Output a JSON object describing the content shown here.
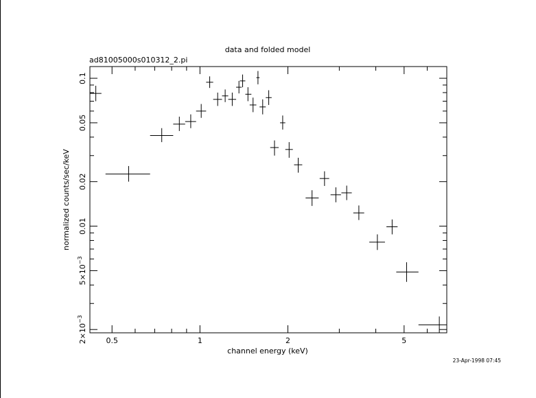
{
  "chart_data": {
    "type": "scatter",
    "title": "data and folded model",
    "subtitle": "ad81005000s010312_2.pi",
    "xlabel": "channel energy (keV)",
    "ylabel": "normalized counts/sec/keV",
    "timestamp": "23-Apr-1998 07:45",
    "x_scale": "log",
    "y_scale": "log",
    "xlim": [
      0.42,
      7.0
    ],
    "ylim": [
      0.0019,
      0.12
    ],
    "grid": false,
    "x_ticks": [
      {
        "value": 0.5,
        "label": "0.5"
      },
      {
        "value": 1,
        "label": "1"
      },
      {
        "value": 2,
        "label": "2"
      },
      {
        "value": 5,
        "label": "5"
      }
    ],
    "y_ticks": [
      {
        "value": 0.1,
        "label": "0.1"
      },
      {
        "value": 0.05,
        "label": "0.05"
      },
      {
        "value": 0.02,
        "label": "0.02"
      },
      {
        "value": 0.01,
        "label": "0.01"
      },
      {
        "value": 0.005,
        "label": "5×10",
        "exp": "−3"
      },
      {
        "value": 0.002,
        "label": "2×10",
        "exp": "−3"
      }
    ],
    "points": [
      {
        "x": 0.44,
        "y": 0.079,
        "xlo": 0.42,
        "xhi": 0.46,
        "ylo": 0.07,
        "yhi": 0.089
      },
      {
        "x": 0.57,
        "y": 0.0225,
        "xlo": 0.475,
        "xhi": 0.675,
        "ylo": 0.02,
        "yhi": 0.0255
      },
      {
        "x": 0.74,
        "y": 0.041,
        "xlo": 0.675,
        "xhi": 0.81,
        "ylo": 0.037,
        "yhi": 0.046
      },
      {
        "x": 0.85,
        "y": 0.049,
        "xlo": 0.81,
        "xhi": 0.89,
        "ylo": 0.044,
        "yhi": 0.055
      },
      {
        "x": 0.93,
        "y": 0.051,
        "xlo": 0.89,
        "xhi": 0.97,
        "ylo": 0.046,
        "yhi": 0.057
      },
      {
        "x": 1.01,
        "y": 0.06,
        "xlo": 0.97,
        "xhi": 1.05,
        "ylo": 0.054,
        "yhi": 0.067
      },
      {
        "x": 1.08,
        "y": 0.094,
        "xlo": 1.05,
        "xhi": 1.11,
        "ylo": 0.086,
        "yhi": 0.103
      },
      {
        "x": 1.15,
        "y": 0.072,
        "xlo": 1.11,
        "xhi": 1.19,
        "ylo": 0.065,
        "yhi": 0.08
      },
      {
        "x": 1.22,
        "y": 0.076,
        "xlo": 1.19,
        "xhi": 1.25,
        "ylo": 0.069,
        "yhi": 0.084
      },
      {
        "x": 1.29,
        "y": 0.072,
        "xlo": 1.25,
        "xhi": 1.33,
        "ylo": 0.065,
        "yhi": 0.08
      },
      {
        "x": 1.36,
        "y": 0.087,
        "xlo": 1.33,
        "xhi": 1.39,
        "ylo": 0.079,
        "yhi": 0.096
      },
      {
        "x": 1.4,
        "y": 0.096,
        "xlo": 1.37,
        "xhi": 1.43,
        "ylo": 0.087,
        "yhi": 0.106
      },
      {
        "x": 1.46,
        "y": 0.078,
        "xlo": 1.43,
        "xhi": 1.5,
        "ylo": 0.07,
        "yhi": 0.087
      },
      {
        "x": 1.52,
        "y": 0.066,
        "xlo": 1.48,
        "xhi": 1.56,
        "ylo": 0.059,
        "yhi": 0.074
      },
      {
        "x": 1.58,
        "y": 0.101,
        "xlo": 1.56,
        "xhi": 1.6,
        "ylo": 0.091,
        "yhi": 0.112
      },
      {
        "x": 1.64,
        "y": 0.064,
        "xlo": 1.6,
        "xhi": 1.68,
        "ylo": 0.057,
        "yhi": 0.072
      },
      {
        "x": 1.72,
        "y": 0.074,
        "xlo": 1.68,
        "xhi": 1.76,
        "ylo": 0.066,
        "yhi": 0.083
      },
      {
        "x": 1.8,
        "y": 0.034,
        "xlo": 1.74,
        "xhi": 1.86,
        "ylo": 0.03,
        "yhi": 0.038
      },
      {
        "x": 1.92,
        "y": 0.05,
        "xlo": 1.88,
        "xhi": 1.96,
        "ylo": 0.045,
        "yhi": 0.056
      },
      {
        "x": 2.02,
        "y": 0.033,
        "xlo": 1.96,
        "xhi": 2.08,
        "ylo": 0.029,
        "yhi": 0.037
      },
      {
        "x": 2.17,
        "y": 0.026,
        "xlo": 2.1,
        "xhi": 2.24,
        "ylo": 0.023,
        "yhi": 0.029
      },
      {
        "x": 2.42,
        "y": 0.0155,
        "xlo": 2.3,
        "xhi": 2.55,
        "ylo": 0.0137,
        "yhi": 0.0175
      },
      {
        "x": 2.67,
        "y": 0.021,
        "xlo": 2.57,
        "xhi": 2.77,
        "ylo": 0.0187,
        "yhi": 0.0235
      },
      {
        "x": 2.92,
        "y": 0.0163,
        "xlo": 2.8,
        "xhi": 3.04,
        "ylo": 0.0145,
        "yhi": 0.0183
      },
      {
        "x": 3.18,
        "y": 0.0168,
        "xlo": 3.05,
        "xhi": 3.31,
        "ylo": 0.015,
        "yhi": 0.0188
      },
      {
        "x": 3.5,
        "y": 0.0123,
        "xlo": 3.35,
        "xhi": 3.65,
        "ylo": 0.011,
        "yhi": 0.0138
      },
      {
        "x": 4.05,
        "y": 0.0078,
        "xlo": 3.8,
        "xhi": 4.3,
        "ylo": 0.0069,
        "yhi": 0.0088
      },
      {
        "x": 4.55,
        "y": 0.0099,
        "xlo": 4.35,
        "xhi": 4.75,
        "ylo": 0.0088,
        "yhi": 0.0111
      },
      {
        "x": 5.1,
        "y": 0.0049,
        "xlo": 4.7,
        "xhi": 5.6,
        "ylo": 0.0042,
        "yhi": 0.0057
      },
      {
        "x": 6.6,
        "y": 0.00215,
        "xlo": 5.6,
        "xhi": 7.0,
        "ylo": 0.0019,
        "yhi": 0.00245
      }
    ]
  }
}
